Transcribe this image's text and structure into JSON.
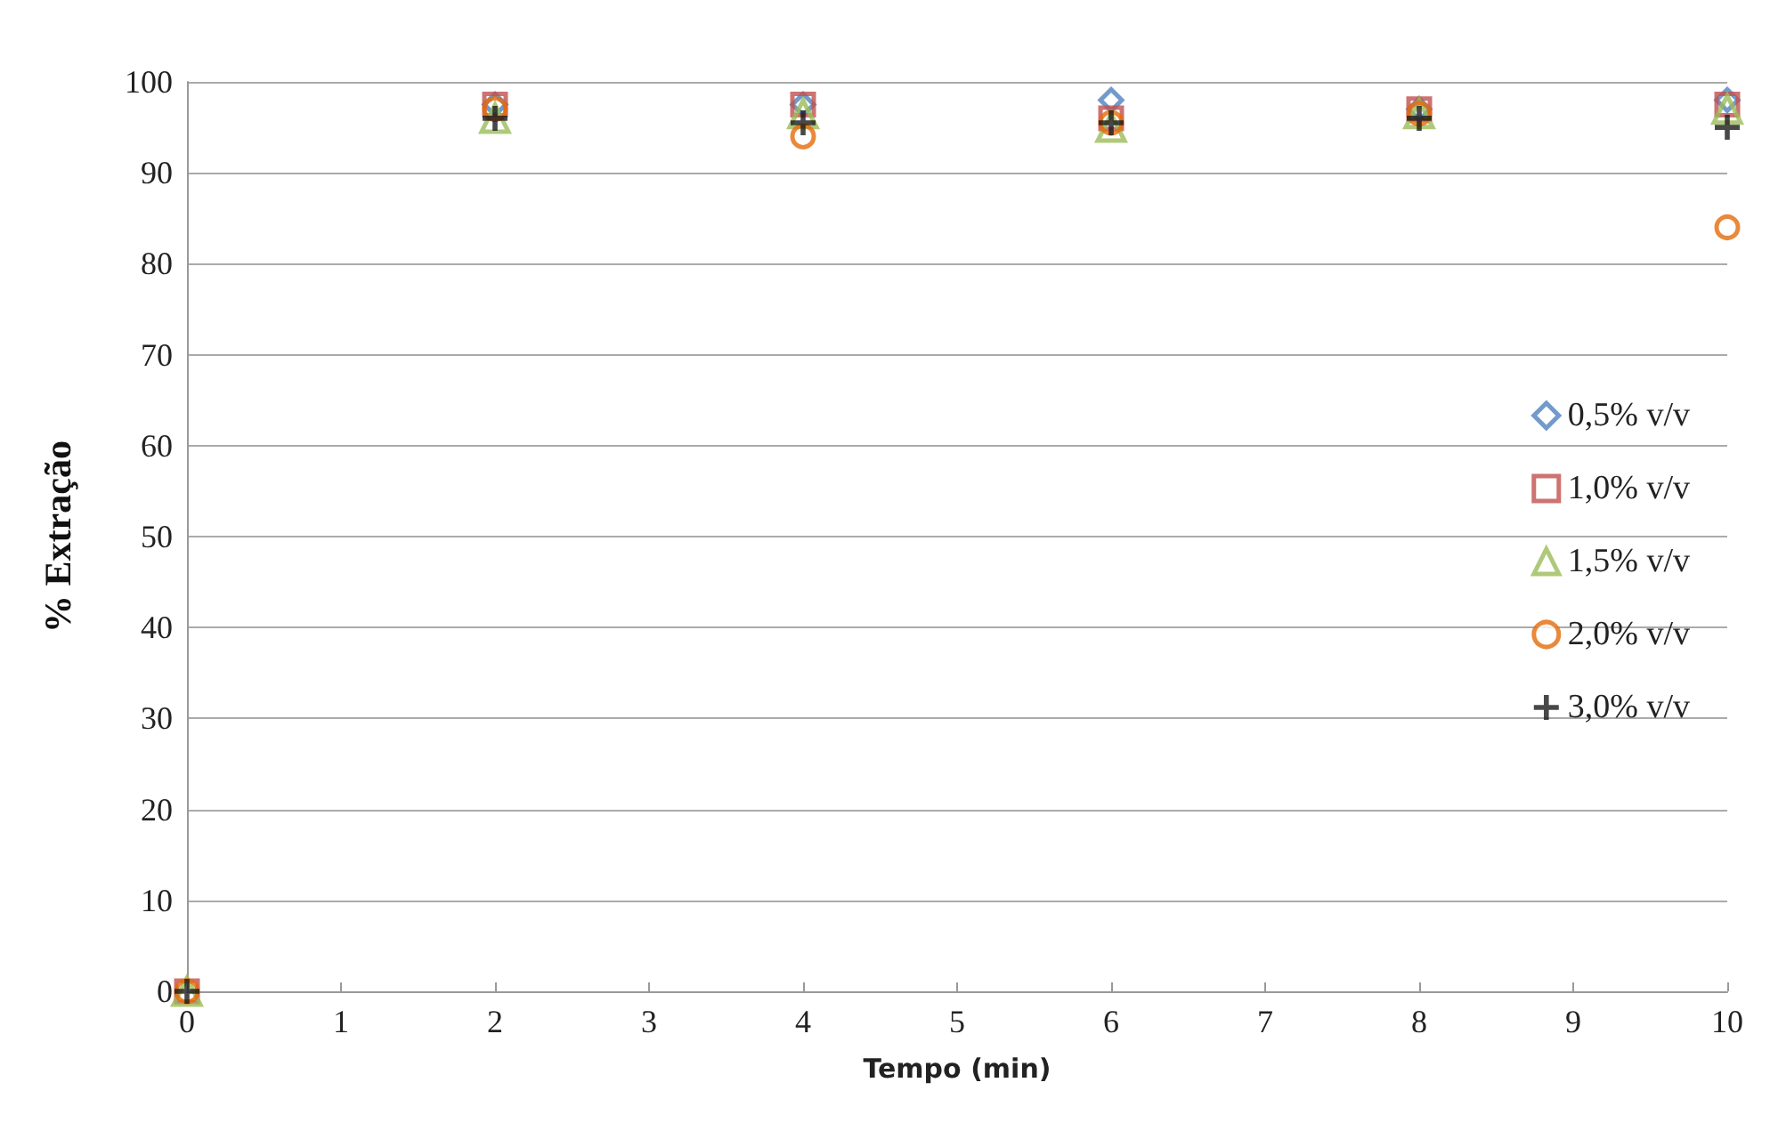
{
  "chart_data": {
    "type": "scatter",
    "xlabel": "Tempo (min)",
    "ylabel": "% Extração",
    "x": [
      0,
      2,
      4,
      6,
      8,
      10
    ],
    "series": [
      {
        "name": "0,5% v/v",
        "color": "#4f81bd",
        "marker": "diamond",
        "values": [
          null,
          97.5,
          97.5,
          98,
          97,
          98
        ]
      },
      {
        "name": "1,0% v/v",
        "color": "#c0504d",
        "marker": "square",
        "values": [
          0,
          97.5,
          97.5,
          96,
          97,
          97.5
        ]
      },
      {
        "name": "1,5% v/v",
        "color": "#9bbb59",
        "marker": "triangle",
        "values": [
          0,
          96,
          96.5,
          95,
          96.5,
          97
        ]
      },
      {
        "name": "2,0% v/v",
        "color": "#e46c0a",
        "marker": "circle",
        "values": [
          0,
          97,
          94,
          95.5,
          96.5,
          84
        ]
      },
      {
        "name": "3,0% v/v",
        "color": "#1a1a1a",
        "marker": "cross",
        "values": [
          0,
          96,
          95.5,
          95.5,
          96,
          95
        ]
      }
    ],
    "xlim": [
      0,
      10
    ],
    "xticks": [
      0,
      1,
      2,
      3,
      4,
      5,
      6,
      7,
      8,
      9,
      10
    ],
    "ylim": [
      0,
      100
    ],
    "yticks": [
      0,
      10,
      20,
      30,
      40,
      50,
      60,
      70,
      80,
      90,
      100
    ],
    "grid": "y",
    "legend": "right"
  }
}
